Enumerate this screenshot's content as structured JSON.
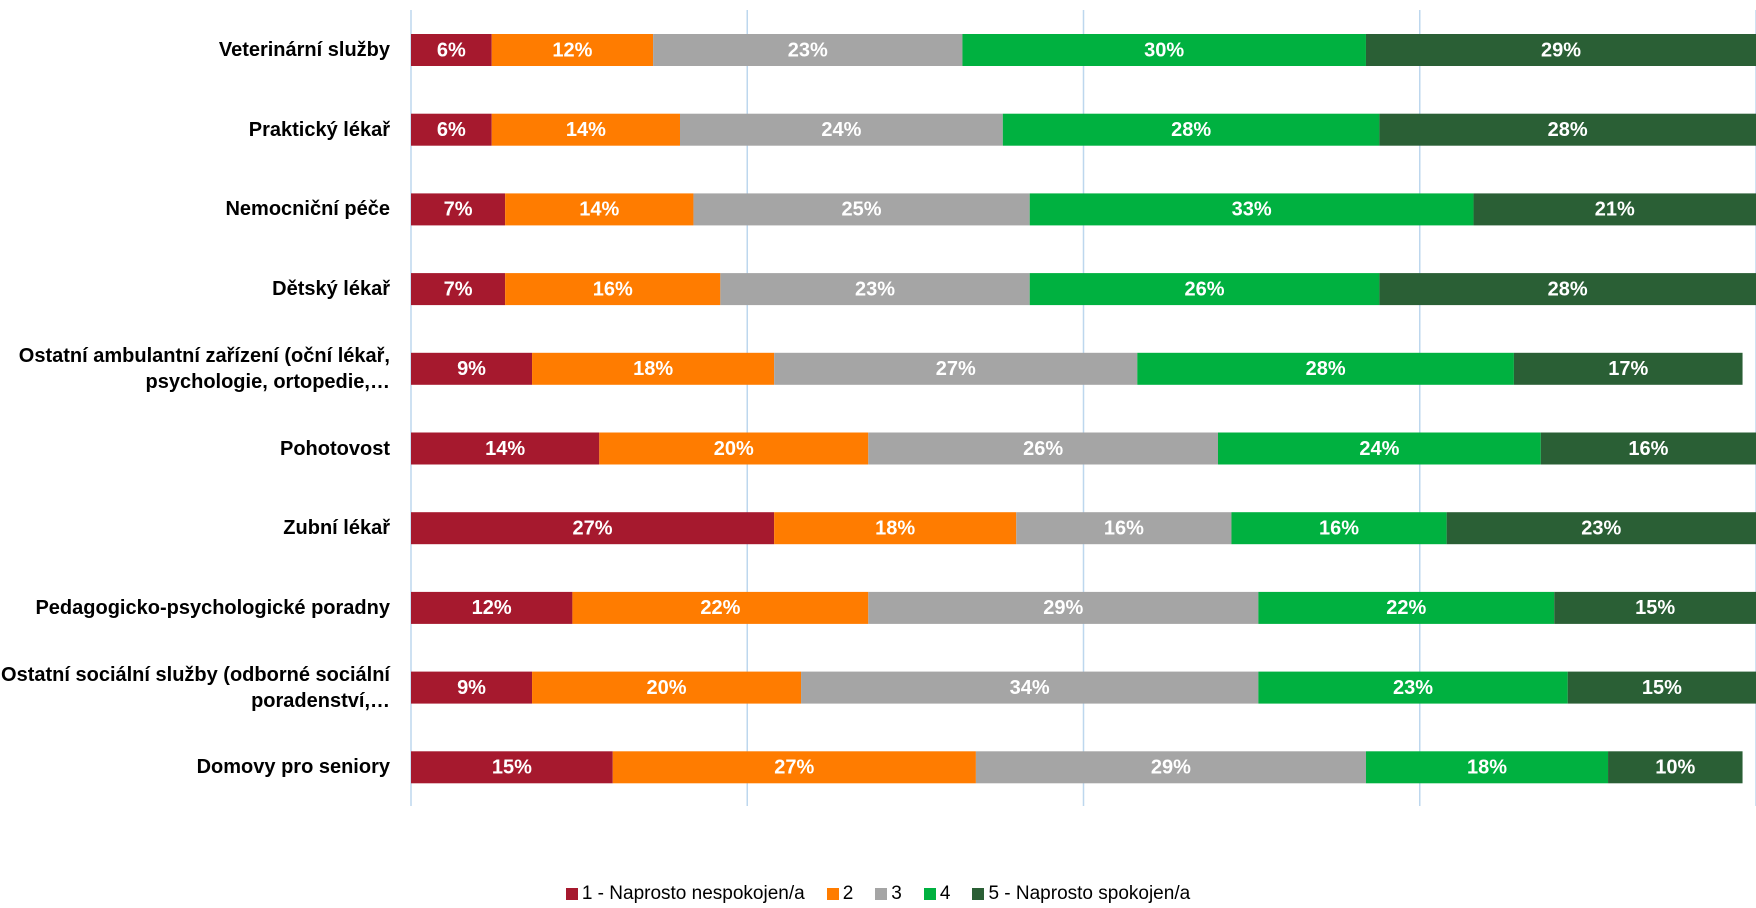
{
  "chart_data": {
    "type": "stacked_barh",
    "categories": [
      "Veterinární služby",
      "Praktický lékař",
      "Nemocniční péče",
      "Dětský lékař",
      "Ostatní ambulantní zařízení (oční lékař, psychologie, ortopedie,…",
      "Pohotovost",
      "Zubní lékař",
      "Pedagogicko-psychologické poradny",
      "Ostatní sociální služby (odborné sociální poradenství,…",
      "Domovy pro seniory"
    ],
    "series": [
      {
        "name": "1 - Naprosto nespokojen/a",
        "color": "#a6192e",
        "values": [
          6,
          6,
          7,
          7,
          9,
          14,
          27,
          12,
          9,
          15
        ],
        "value_labels": [
          "6%",
          "6%",
          "7%",
          "7%",
          "9%",
          "14%",
          "27%",
          "12%",
          "9%",
          "15%"
        ]
      },
      {
        "name": "2",
        "color": "#ff7c00",
        "values": [
          12,
          14,
          14,
          16,
          18,
          20,
          18,
          22,
          20,
          27
        ],
        "value_labels": [
          "12%",
          "14%",
          "14%",
          "16%",
          "18%",
          "20%",
          "18%",
          "22%",
          "20%",
          "27%"
        ]
      },
      {
        "name": "3",
        "color": "#a5a5a5",
        "values": [
          23,
          24,
          25,
          23,
          27,
          26,
          16,
          29,
          34,
          29
        ],
        "value_labels": [
          "23%",
          "24%",
          "25%",
          "23%",
          "27%",
          "26%",
          "16%",
          "29%",
          "34%",
          "29%"
        ]
      },
      {
        "name": "4",
        "color": "#00b140",
        "values": [
          30,
          28,
          33,
          26,
          28,
          24,
          16,
          22,
          23,
          18
        ],
        "value_labels": [
          "30%",
          "28%",
          "33%",
          "26%",
          "28%",
          "24%",
          "16%",
          "22%",
          "23%",
          "18%"
        ]
      },
      {
        "name": "5 - Naprosto spokojen/a",
        "color": "#2a5f35",
        "values": [
          29,
          28,
          21,
          28,
          17,
          16,
          23,
          15,
          15,
          10
        ],
        "value_labels": [
          "29%",
          "28%",
          "21%",
          "28%",
          "17%",
          "16%",
          "23%",
          "15%",
          "15%",
          "10%"
        ]
      }
    ],
    "xlim": [
      0,
      100
    ],
    "xticks": [
      0,
      25,
      50,
      75,
      100
    ],
    "grid": true
  }
}
